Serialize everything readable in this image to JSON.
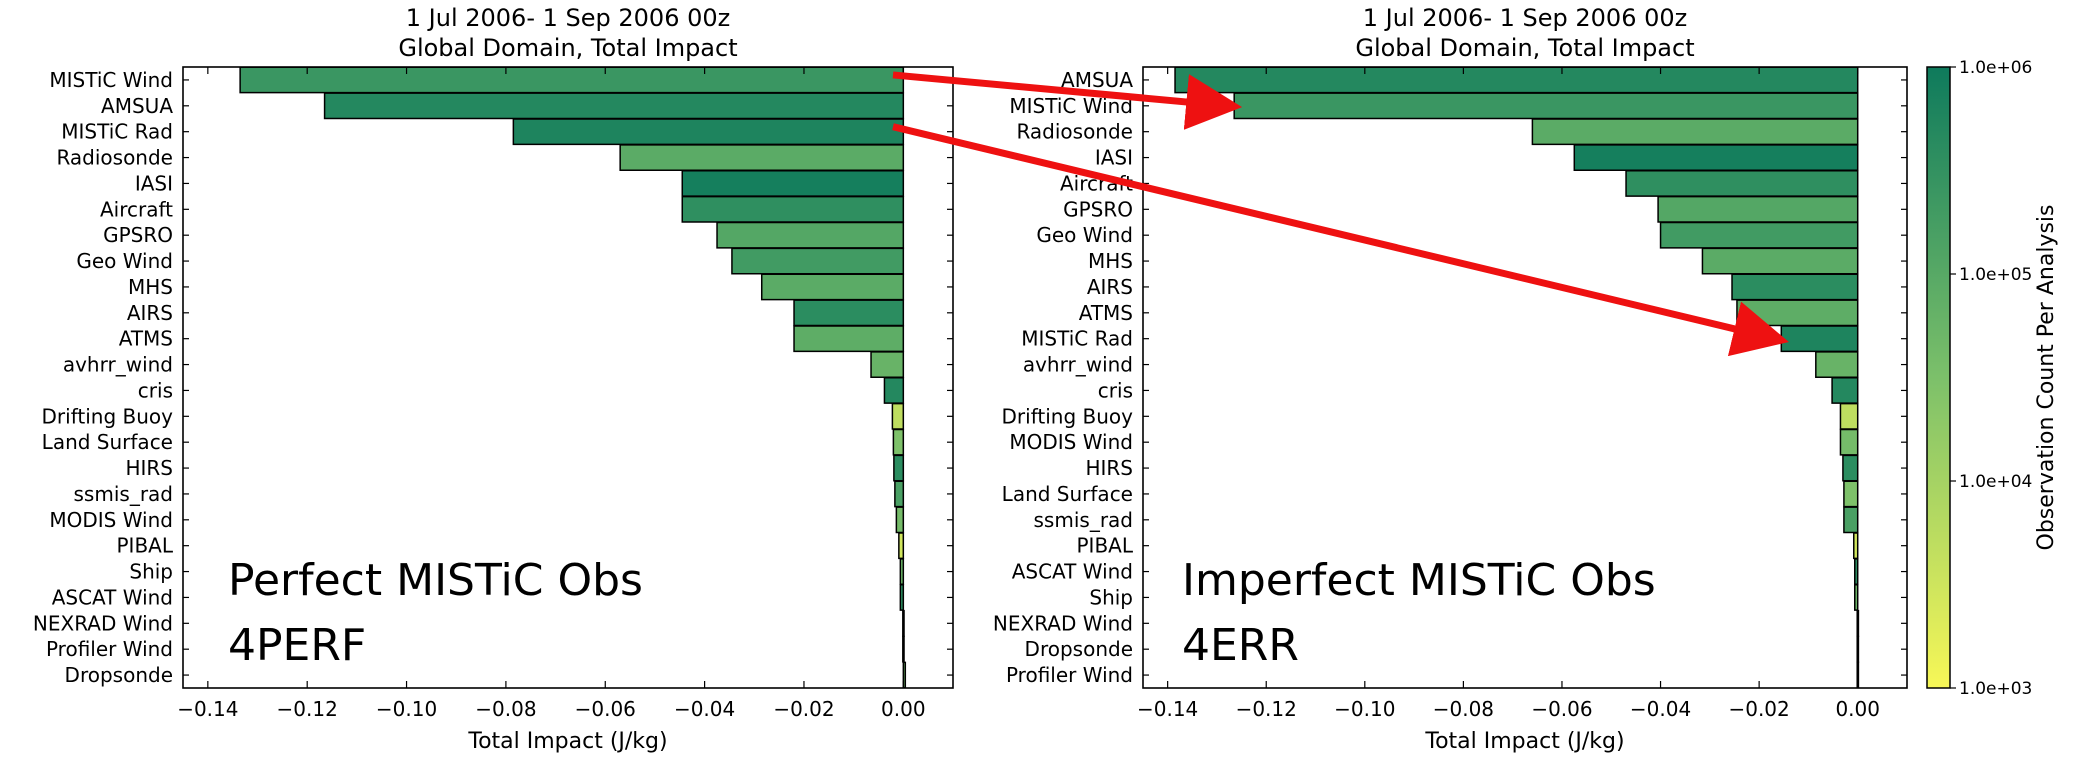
{
  "colors": {
    "colormap_low": "#f7f757",
    "colormap_mid": "#7cc06a",
    "colormap_high": "#0e7a5c",
    "arrow": "#ee1111",
    "bar_edge": "#000000"
  },
  "chart_data": [
    {
      "type": "bar",
      "orientation": "horizontal",
      "title_line1": "1 Jul 2006- 1 Sep 2006 00z",
      "title_line2": "Global Domain, Total Impact",
      "xlabel": "Total Impact (J/kg)",
      "xlim": [
        -0.145,
        0.01
      ],
      "xticks": [
        -0.14,
        -0.12,
        -0.1,
        -0.08,
        -0.06,
        -0.04,
        -0.02,
        0.0
      ],
      "xtick_labels": [
        "−0.14",
        "−0.12",
        "−0.10",
        "−0.08",
        "−0.06",
        "−0.04",
        "−0.02",
        "0.00"
      ],
      "annotation_line1": "Perfect MISTiC Obs",
      "annotation_line2": "4PERF",
      "categories": [
        "MISTiC Wind",
        "AMSUA",
        "MISTiC Rad",
        "Radiosonde",
        "IASI",
        "Aircraft",
        "GPSRO",
        "Geo Wind",
        "MHS",
        "AIRS",
        "ATMS",
        "avhrr_wind",
        "cris",
        "Drifting Buoy",
        "Land Surface",
        "HIRS",
        "ssmis_rad",
        "MODIS Wind",
        "PIBAL",
        "Ship",
        "ASCAT Wind",
        "NEXRAD Wind",
        "Profiler Wind",
        "Dropsonde"
      ],
      "values": [
        -0.1335,
        -0.1165,
        -0.0785,
        -0.057,
        -0.0445,
        -0.0445,
        -0.0375,
        -0.0345,
        -0.0285,
        -0.022,
        -0.022,
        -0.0065,
        -0.0038,
        -0.0022,
        -0.002,
        -0.0019,
        -0.0017,
        -0.0014,
        -0.0009,
        -0.0006,
        -0.0006,
        -0.0001,
        -0.0001,
        0.0004
      ],
      "obs_counts": [
        250000,
        500000,
        600000,
        90000,
        800000,
        350000,
        110000,
        200000,
        90000,
        400000,
        80000,
        60000,
        500000,
        5000,
        30000,
        400000,
        150000,
        40000,
        3000,
        50000,
        400000,
        40000,
        30000,
        50000
      ]
    },
    {
      "type": "bar",
      "orientation": "horizontal",
      "title_line1": "1 Jul 2006- 1 Sep 2006 00z",
      "title_line2": "Global Domain, Total Impact",
      "xlabel": "Total Impact (J/kg)",
      "xlim": [
        -0.145,
        0.01
      ],
      "xticks": [
        -0.14,
        -0.12,
        -0.1,
        -0.08,
        -0.06,
        -0.04,
        -0.02,
        0.0
      ],
      "xtick_labels": [
        "−0.14",
        "−0.12",
        "−0.10",
        "−0.08",
        "−0.06",
        "−0.04",
        "−0.02",
        "0.00"
      ],
      "annotation_line1": "Imperfect MISTiC Obs",
      "annotation_line2": "4ERR",
      "categories": [
        "AMSUA",
        "MISTiC Wind",
        "Radiosonde",
        "IASI",
        "Aircraft",
        "GPSRO",
        "Geo Wind",
        "MHS",
        "AIRS",
        "ATMS",
        "MISTiC Rad",
        "avhrr_wind",
        "cris",
        "Drifting Buoy",
        "MODIS Wind",
        "HIRS",
        "Land Surface",
        "ssmis_rad",
        "PIBAL",
        "ASCAT Wind",
        "Ship",
        "NEXRAD Wind",
        "Dropsonde",
        "Profiler Wind"
      ],
      "values": [
        -0.1385,
        -0.1265,
        -0.066,
        -0.0575,
        -0.047,
        -0.0405,
        -0.04,
        -0.0315,
        -0.0255,
        -0.0245,
        -0.0155,
        -0.0085,
        -0.0052,
        -0.0035,
        -0.0035,
        -0.003,
        -0.0028,
        -0.0028,
        -0.0008,
        -0.0006,
        -0.0006,
        -0.0001,
        -0.0001,
        -0.0001
      ],
      "obs_counts": [
        500000,
        250000,
        90000,
        800000,
        350000,
        110000,
        200000,
        90000,
        400000,
        80000,
        600000,
        60000,
        500000,
        5000,
        40000,
        400000,
        30000,
        150000,
        3000,
        400000,
        50000,
        40000,
        50000,
        30000
      ]
    }
  ],
  "colorbar": {
    "label": "Observation Count Per Analysis",
    "scale": "log",
    "range": [
      1000,
      1000000
    ],
    "tick_labels": [
      "1.0e+03",
      "1.0e+04",
      "1.0e+05",
      "1.0e+06"
    ]
  },
  "arrows": [
    {
      "from": "MISTiC Wind",
      "to": "MISTiC Wind"
    },
    {
      "from": "MISTiC Rad",
      "to": "MISTiC Rad"
    }
  ]
}
